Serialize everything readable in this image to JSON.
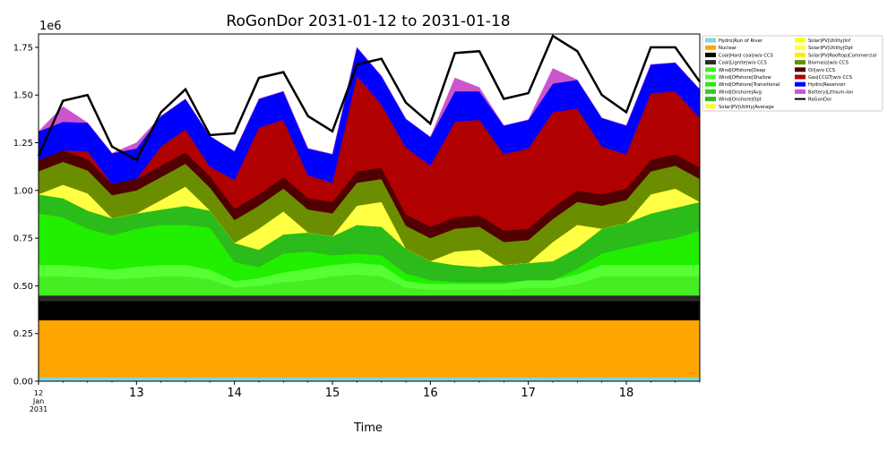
{
  "chart_data": {
    "type": "area",
    "title": "RoGonDor 2031-01-12 to 2031-01-18",
    "xlabel": "Time",
    "ylabel": "",
    "y_scale_label": "1e6",
    "ylim": [
      0,
      1820000
    ],
    "yticks": [
      0,
      250000,
      500000,
      750000,
      1000000,
      1250000,
      1500000,
      1750000
    ],
    "ytick_labels": [
      "0.00",
      "0.25",
      "0.50",
      "0.75",
      "1.00",
      "1.25",
      "1.50",
      "1.75"
    ],
    "xlim": [
      0,
      6.75
    ],
    "xticks": [
      0,
      1,
      2,
      3,
      4,
      5,
      6
    ],
    "xtick_labels": [
      "12\nJan\n2031",
      "13",
      "14",
      "15",
      "16",
      "17",
      "18"
    ],
    "x": [
      0,
      0.25,
      0.5,
      0.75,
      1,
      1.25,
      1.5,
      1.75,
      2,
      2.25,
      2.5,
      2.75,
      3,
      3.25,
      3.5,
      3.75,
      4,
      4.25,
      4.5,
      4.75,
      5,
      5.25,
      5.5,
      5.75,
      6,
      6.25,
      6.5,
      6.75
    ],
    "legend_position": "upper-right-outside",
    "series": [
      {
        "name": "Hydro|Run of River",
        "color": "#7fd8e0",
        "values": [
          20000,
          20000,
          20000,
          20000,
          20000,
          20000,
          20000,
          20000,
          20000,
          20000,
          20000,
          20000,
          20000,
          20000,
          20000,
          20000,
          20000,
          20000,
          20000,
          20000,
          20000,
          20000,
          20000,
          20000,
          20000,
          20000,
          20000,
          20000
        ]
      },
      {
        "name": "Nuclear",
        "color": "#ffa500",
        "values": [
          300000,
          300000,
          300000,
          300000,
          300000,
          300000,
          300000,
          300000,
          300000,
          300000,
          300000,
          300000,
          300000,
          300000,
          300000,
          300000,
          300000,
          300000,
          300000,
          300000,
          300000,
          300000,
          300000,
          300000,
          300000,
          300000,
          300000,
          300000
        ]
      },
      {
        "name": "Coal|Hard coal|w/o CCS",
        "color": "#000000",
        "values": [
          100000,
          100000,
          100000,
          100000,
          100000,
          100000,
          100000,
          100000,
          100000,
          100000,
          100000,
          100000,
          100000,
          100000,
          100000,
          100000,
          100000,
          100000,
          100000,
          100000,
          100000,
          100000,
          100000,
          100000,
          100000,
          100000,
          100000,
          100000
        ]
      },
      {
        "name": "Coal|Lignite|w/o CCS",
        "color": "#2a2a2a",
        "values": [
          30000,
          30000,
          30000,
          30000,
          30000,
          30000,
          30000,
          30000,
          30000,
          30000,
          30000,
          30000,
          30000,
          30000,
          30000,
          30000,
          30000,
          30000,
          30000,
          30000,
          30000,
          30000,
          30000,
          30000,
          30000,
          30000,
          30000,
          30000
        ]
      },
      {
        "name": "Wind|Offshore|Deep",
        "color": "#44ee22",
        "values": [
          100000,
          100000,
          95000,
          85000,
          90000,
          100000,
          100000,
          85000,
          40000,
          50000,
          70000,
          80000,
          100000,
          110000,
          100000,
          40000,
          30000,
          30000,
          30000,
          30000,
          40000,
          40000,
          60000,
          100000,
          100000,
          100000,
          100000,
          100000
        ]
      },
      {
        "name": "Wind|Offshore|Shallow",
        "color": "#55ff33",
        "values": [
          60000,
          60000,
          55000,
          50000,
          60000,
          60000,
          60000,
          50000,
          35000,
          40000,
          50000,
          60000,
          60000,
          60000,
          60000,
          35000,
          30000,
          30000,
          30000,
          30000,
          40000,
          40000,
          50000,
          60000,
          60000,
          60000,
          60000,
          60000
        ]
      },
      {
        "name": "Wind|Offshore|Transitional",
        "color": "#22ee00",
        "values": [
          270000,
          250000,
          200000,
          180000,
          200000,
          210000,
          210000,
          220000,
          100000,
          60000,
          100000,
          90000,
          50000,
          50000,
          50000,
          40000,
          20000,
          10000,
          10000,
          10000,
          0,
          0,
          30000,
          60000,
          90000,
          120000,
          140000,
          180000
        ]
      },
      {
        "name": "Wind|Onshore|Avg",
        "color": "#33cc22",
        "values": [
          0,
          0,
          0,
          0,
          0,
          0,
          0,
          0,
          0,
          0,
          0,
          0,
          0,
          0,
          0,
          0,
          0,
          0,
          0,
          0,
          0,
          0,
          0,
          0,
          0,
          0,
          0,
          0
        ]
      },
      {
        "name": "Wind|Onshore|Opt",
        "color": "#2bbb1a",
        "values": [
          100000,
          100000,
          95000,
          90000,
          80000,
          80000,
          100000,
          90000,
          100000,
          90000,
          100000,
          100000,
          100000,
          150000,
          150000,
          130000,
          100000,
          90000,
          80000,
          90000,
          90000,
          100000,
          110000,
          130000,
          130000,
          150000,
          160000,
          150000
        ]
      },
      {
        "name": "Solar|PV|Utility|Average",
        "color": "#ffff22",
        "values": [
          0,
          0,
          0,
          0,
          0,
          0,
          0,
          0,
          0,
          0,
          0,
          0,
          0,
          0,
          0,
          0,
          0,
          0,
          0,
          0,
          0,
          0,
          0,
          0,
          0,
          0,
          0,
          0
        ]
      },
      {
        "name": "Solar|PV|Utility|Inf",
        "color": "#ffff00",
        "values": [
          0,
          0,
          0,
          0,
          0,
          0,
          0,
          0,
          0,
          0,
          0,
          0,
          0,
          0,
          0,
          0,
          0,
          0,
          0,
          0,
          0,
          0,
          0,
          0,
          0,
          0,
          0,
          0
        ]
      },
      {
        "name": "Solar|PV|Utility|Opt",
        "color": "#ffff44",
        "values": [
          0,
          70000,
          90000,
          0,
          0,
          50000,
          100000,
          0,
          0,
          110000,
          120000,
          0,
          0,
          100000,
          130000,
          0,
          0,
          70000,
          90000,
          0,
          0,
          100000,
          120000,
          0,
          0,
          100000,
          100000,
          0
        ]
      },
      {
        "name": "Solar|PV|Rooftop|Commercial",
        "color": "#f2f200",
        "values": [
          0,
          0,
          0,
          0,
          0,
          0,
          0,
          0,
          0,
          0,
          0,
          0,
          0,
          0,
          0,
          0,
          0,
          0,
          0,
          0,
          0,
          0,
          0,
          0,
          0,
          0,
          0,
          0
        ]
      },
      {
        "name": "Biomass|w/o CCS",
        "color": "#6b8e00",
        "values": [
          120000,
          120000,
          120000,
          120000,
          120000,
          120000,
          120000,
          120000,
          120000,
          120000,
          120000,
          120000,
          120000,
          120000,
          120000,
          120000,
          120000,
          120000,
          120000,
          120000,
          120000,
          120000,
          120000,
          120000,
          120000,
          120000,
          120000,
          120000
        ]
      },
      {
        "name": "Oil|w/o CCS",
        "color": "#500000",
        "values": [
          60000,
          60000,
          60000,
          60000,
          60000,
          60000,
          60000,
          60000,
          60000,
          60000,
          60000,
          60000,
          60000,
          60000,
          60000,
          60000,
          60000,
          60000,
          60000,
          60000,
          60000,
          60000,
          60000,
          60000,
          60000,
          60000,
          60000,
          60000
        ]
      },
      {
        "name": "Gas|CCGT|w/o CCS",
        "color": "#b00000",
        "values": [
          0,
          0,
          40000,
          0,
          0,
          100000,
          120000,
          50000,
          150000,
          350000,
          300000,
          120000,
          100000,
          500000,
          330000,
          350000,
          320000,
          500000,
          500000,
          400000,
          420000,
          500000,
          430000,
          250000,
          180000,
          350000,
          330000,
          260000
        ]
      },
      {
        "name": "Hydro|Reservoir",
        "color": "#0000ff",
        "values": [
          150000,
          150000,
          150000,
          160000,
          160000,
          160000,
          160000,
          160000,
          150000,
          150000,
          150000,
          140000,
          150000,
          150000,
          150000,
          150000,
          150000,
          160000,
          150000,
          150000,
          150000,
          150000,
          150000,
          150000,
          150000,
          150000,
          150000,
          150000
        ]
      },
      {
        "name": "Battery|Lithium-Ion",
        "color": "#cc55cc",
        "values": [
          0,
          80000,
          0,
          0,
          30000,
          0,
          0,
          0,
          0,
          0,
          0,
          0,
          0,
          0,
          0,
          0,
          0,
          70000,
          20000,
          0,
          0,
          80000,
          0,
          0,
          0,
          0,
          0,
          0
        ]
      },
      {
        "name": "RoGonDor",
        "color": "#000000",
        "type": "line",
        "values": [
          1180000,
          1470000,
          1500000,
          1230000,
          1160000,
          1410000,
          1530000,
          1290000,
          1300000,
          1590000,
          1620000,
          1390000,
          1310000,
          1660000,
          1690000,
          1460000,
          1350000,
          1720000,
          1730000,
          1480000,
          1510000,
          1810000,
          1730000,
          1500000,
          1410000,
          1750000,
          1750000,
          1570000
        ]
      }
    ]
  }
}
